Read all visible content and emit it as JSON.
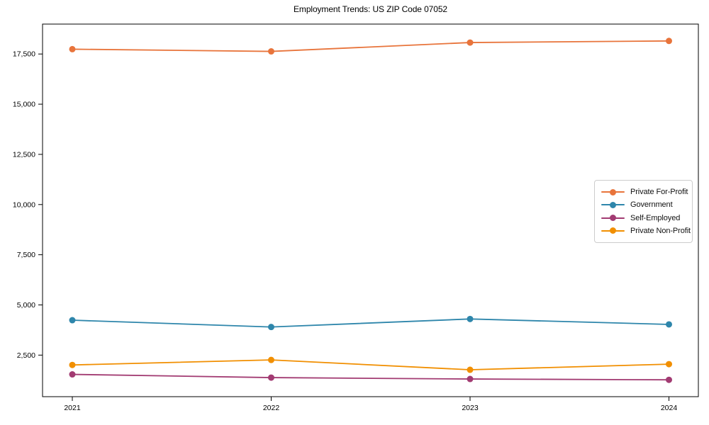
{
  "title": "Employment Trends: US ZIP Code 07052",
  "chart_data": {
    "type": "line",
    "title": "Employment Trends: US ZIP Code 07052",
    "xlabel": "",
    "ylabel": "",
    "grid": false,
    "background_color": "#ffffff",
    "axis_color": "#000000",
    "legend_position": "center-right",
    "legend_border_color": "#cccccc",
    "x": [
      2021,
      2022,
      2023,
      2024
    ],
    "x_tick_labels": [
      "2021",
      "2022",
      "2023",
      "2024"
    ],
    "y_ticks": [
      2500,
      5000,
      7500,
      10000,
      12500,
      15000,
      17500
    ],
    "y_tick_labels": [
      "2,500",
      "5,000",
      "7,500",
      "10,000",
      "12,500",
      "15,000",
      "17,500"
    ],
    "ylim": [
      430,
      18990
    ],
    "marker": "circle",
    "series": [
      {
        "name": "Private For-Profit",
        "color": "#E8743B",
        "values": [
          17740,
          17630,
          18070,
          18150
        ]
      },
      {
        "name": "Government",
        "color": "#2E86AB",
        "values": [
          4240,
          3900,
          4300,
          4030
        ]
      },
      {
        "name": "Self-Employed",
        "color": "#A23B72",
        "values": [
          1540,
          1380,
          1310,
          1270
        ]
      },
      {
        "name": "Private Non-Profit",
        "color": "#F18F01",
        "values": [
          2010,
          2260,
          1770,
          2050
        ]
      }
    ]
  }
}
